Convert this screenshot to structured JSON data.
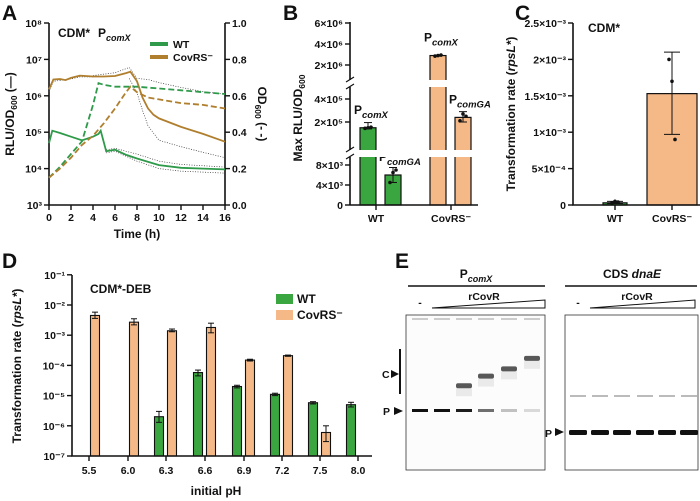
{
  "panels": {
    "A": "A",
    "B": "B",
    "C": "C",
    "D": "D",
    "E": "E"
  },
  "colors": {
    "wt": "#3aa63f",
    "covrs": "#f4b987",
    "wt_line": "#2e9a4a",
    "covrs_line": "#b07f2e",
    "ci": "#333333"
  },
  "chart_data": [
    {
      "panel": "A",
      "type": "line",
      "title": "CDM*",
      "title_promoter": "P",
      "title_promoter_sub": "comX",
      "xlabel": "Time (h)",
      "ylabel_left": "RLU/OD600 (—)",
      "ylabel_left_parts": {
        "a": "RLU/OD",
        "sub": "600",
        "b": " (—)"
      },
      "ylabel_right_parts": {
        "a": "OD",
        "sub": "600",
        "b": " (- -)"
      },
      "xlim": [
        0,
        16
      ],
      "ylim_left": [
        1000,
        100000000
      ],
      "yscale_left": "log",
      "ylim_right": [
        0,
        1.0
      ],
      "x_ticks": [
        "0",
        "2",
        "4",
        "6",
        "8",
        "10",
        "12",
        "14",
        "16"
      ],
      "y_ticks_left": [
        "10³",
        "10⁴",
        "10⁵",
        "10⁶",
        "10⁷",
        "10⁸"
      ],
      "y_ticks_right": [
        "0.0",
        "0.2",
        "0.4",
        "0.6",
        "0.8",
        "1.0"
      ],
      "legend": [
        "WT",
        "CovRS⁻"
      ],
      "legend_position": "top-right",
      "series": [
        {
          "name": "WT",
          "axis": "left",
          "style": "solid",
          "x": [
            0,
            0.3,
            1,
            2,
            3,
            4,
            4.5,
            4.7,
            5.2,
            6,
            7,
            8,
            10,
            12,
            14,
            16
          ],
          "y": [
            50000,
            110000,
            95000,
            75000,
            60000,
            75000,
            90000,
            110000,
            30000,
            33000,
            24000,
            19000,
            12500,
            10500,
            10000,
            9500
          ]
        },
        {
          "name": "CovRS⁻",
          "axis": "left",
          "style": "solid",
          "x": [
            0,
            0.4,
            1,
            1.5,
            2,
            2.8,
            4,
            5,
            6,
            7,
            7.4,
            8,
            8.5,
            9,
            9.5,
            10,
            12,
            14,
            16
          ],
          "y": [
            1500000,
            2800000,
            2900000,
            2700000,
            3100000,
            3600000,
            3400000,
            3400000,
            3500000,
            4200000,
            4600000,
            2500000,
            900000,
            450000,
            300000,
            240000,
            140000,
            90000,
            55000
          ]
        },
        {
          "name": "WT",
          "axis": "right",
          "style": "dashed",
          "x": [
            0,
            1,
            2,
            3,
            4,
            4.5,
            5,
            6,
            8,
            10,
            12,
            14,
            16
          ],
          "y": [
            0.15,
            0.21,
            0.28,
            0.35,
            0.55,
            0.67,
            0.66,
            0.65,
            0.65,
            0.64,
            0.63,
            0.62,
            0.61
          ]
        },
        {
          "name": "CovRS⁻",
          "axis": "right",
          "style": "dashed",
          "x": [
            0,
            1,
            2,
            3,
            4,
            5,
            6,
            7,
            7.4,
            8,
            9,
            10,
            12,
            14,
            16
          ],
          "y": [
            0.15,
            0.2,
            0.26,
            0.33,
            0.38,
            0.45,
            0.53,
            0.62,
            0.65,
            0.62,
            0.59,
            0.58,
            0.56,
            0.55,
            0.53
          ]
        }
      ],
      "ci_bands": [
        {
          "x": [
            4,
            6,
            7.3,
            8,
            9,
            10,
            12,
            14,
            16
          ],
          "y": [
            3600000,
            4300000,
            6000000,
            3000000,
            2800000,
            2300000,
            1700000,
            1300000,
            1100000
          ]
        },
        {
          "x": [
            7.3,
            8,
            8.5,
            9,
            10,
            12,
            14,
            16
          ],
          "y": [
            3000000,
            1200000,
            400000,
            150000,
            60000,
            40000,
            28000,
            20000
          ]
        },
        {
          "x": [
            5.2,
            6,
            8,
            10,
            12,
            14,
            16
          ],
          "y": [
            33000,
            36000,
            25000,
            16000,
            13000,
            12000,
            11000
          ]
        },
        {
          "x": [
            5.2,
            6,
            8,
            10,
            12,
            14,
            16
          ],
          "y": [
            27000,
            30000,
            16000,
            10000,
            8500,
            8000,
            7500
          ]
        },
        {
          "x": [
            0,
            0.4,
            2,
            2.8,
            4
          ],
          "y": [
            1300000,
            2500000,
            2900000,
            3300000,
            3300000
          ]
        }
      ]
    },
    {
      "panel": "B",
      "type": "bar",
      "ylabel_parts": {
        "a": "Max RLU/OD",
        "sub": "600"
      },
      "yscale": "broken-axis",
      "y_ticks": [
        {
          "value": 0,
          "label": "0"
        },
        {
          "value": 4000,
          "label": "4×10³"
        },
        {
          "value": 8000,
          "label": "8×10³"
        },
        {
          "value": 200000,
          "label": "2×10⁵"
        },
        {
          "value": 400000,
          "label": "4×10⁵"
        },
        {
          "value": 2000000,
          "label": "2×10⁶"
        },
        {
          "value": 4000000,
          "label": "4×10⁶"
        },
        {
          "value": 6000000,
          "label": "6×10⁶"
        }
      ],
      "categories": [
        "WT",
        "CovRS⁻"
      ],
      "bars": [
        {
          "group": "WT",
          "promoter": "P",
          "promoter_sub": "comX",
          "value": 150000,
          "err": [
            140000,
            195000
          ],
          "points": [
            145000,
            150000,
            155000
          ],
          "color": "wt"
        },
        {
          "group": "WT",
          "promoter": "P",
          "promoter_sub": "comGA",
          "value": 6000,
          "err": [
            4500,
            7500
          ],
          "points": [
            4500,
            6500,
            7000
          ],
          "color": "wt"
        },
        {
          "group": "CovRS⁻",
          "promoter": "P",
          "promoter_sub": "comX",
          "value": 2900000,
          "err": [
            2850000,
            2950000
          ],
          "points": [
            2850000,
            2900000,
            2950000
          ],
          "color": "covrs"
        },
        {
          "group": "CovRS⁻",
          "promoter": "P",
          "promoter_sub": "comGA",
          "value": 240000,
          "err": [
            200000,
            290000
          ],
          "points": [
            210000,
            270000,
            250000
          ],
          "color": "covrs"
        }
      ]
    },
    {
      "panel": "C",
      "type": "bar",
      "title": "CDM*",
      "ylabel_parts": {
        "a": "Transformation rate (",
        "it": "rpsL*",
        "b": ")"
      },
      "ylim": [
        0,
        0.0025
      ],
      "y_ticks": [
        {
          "value": 0,
          "label": "0"
        },
        {
          "value": 0.0005,
          "label": "5×10⁻⁴"
        },
        {
          "value": 0.001,
          "label": "1×10⁻³"
        },
        {
          "value": 0.0015,
          "label": "1.5×10⁻³"
        },
        {
          "value": 0.002,
          "label": "2×10⁻³"
        },
        {
          "value": 0.0025,
          "label": "2.5×10⁻³"
        }
      ],
      "categories": [
        "WT",
        "CovRS⁻"
      ],
      "values": [
        3e-05,
        0.00153
      ],
      "errors": [
        [
          2e-05,
          5e-05
        ],
        [
          0.00097,
          0.0021
        ]
      ],
      "points": [
        [
          3e-05,
          5e-05,
          4e-05
        ],
        [
          0.002,
          0.0017,
          0.0009
        ]
      ]
    },
    {
      "panel": "D",
      "type": "bar",
      "title": "CDM*-DEB",
      "xlabel": "initial pH",
      "ylabel_parts": {
        "a": "Transformation rate (",
        "it": "rpsL*",
        "b": ")"
      },
      "yscale": "log",
      "ylim": [
        1e-07,
        0.1
      ],
      "y_ticks": [
        "10⁻⁷",
        "10⁻⁶",
        "10⁻⁵",
        "10⁻⁴",
        "10⁻³",
        "10⁻²",
        "10⁻¹"
      ],
      "categories": [
        "5.5",
        "6.0",
        "6.3",
        "6.6",
        "6.9",
        "7.2",
        "7.5",
        "8.0"
      ],
      "legend_position": "top-right",
      "series": [
        {
          "name": "WT",
          "color": "wt",
          "values": [
            null,
            null,
            2e-06,
            5.8e-05,
            2e-05,
            1.1e-05,
            5.8e-06,
            5e-06
          ],
          "err_low": [
            null,
            null,
            1.3e-06,
            4.5e-05,
            1.8e-05,
            1e-05,
            5.3e-06,
            4.2e-06
          ],
          "err_high": [
            null,
            null,
            3e-06,
            7e-05,
            2.2e-05,
            1.2e-05,
            6.3e-06,
            6e-06
          ]
        },
        {
          "name": "CovRS⁻",
          "color": "covrs",
          "values": [
            0.0045,
            0.0027,
            0.0014,
            0.0018,
            0.00015,
            0.00021,
            6e-07,
            null
          ],
          "err_low": [
            0.0036,
            0.0022,
            0.0013,
            0.0012,
            0.00014,
            0.0002,
            3e-07,
            null
          ],
          "err_high": [
            0.0058,
            0.0035,
            0.0016,
            0.0025,
            0.00016,
            0.00022,
            1e-06,
            null
          ]
        }
      ]
    }
  ],
  "gel": {
    "left": {
      "title": "P",
      "title_sub": "comX",
      "neg": "-",
      "protein": "rCovR",
      "labels": {
        "complex": "C",
        "probe": "P"
      },
      "probe_intensity": [
        1,
        1,
        0.95,
        0.6,
        0.25,
        0.15
      ],
      "complex_shift": [
        null,
        null,
        0.35,
        0.55,
        0.7,
        0.92
      ]
    },
    "right": {
      "title": "CDS ",
      "title_it": "dnaE",
      "neg": "-",
      "protein": "rCovR",
      "labels": {
        "probe": "P"
      },
      "probe_intensity": [
        1,
        1,
        1,
        1,
        1,
        1
      ]
    }
  }
}
